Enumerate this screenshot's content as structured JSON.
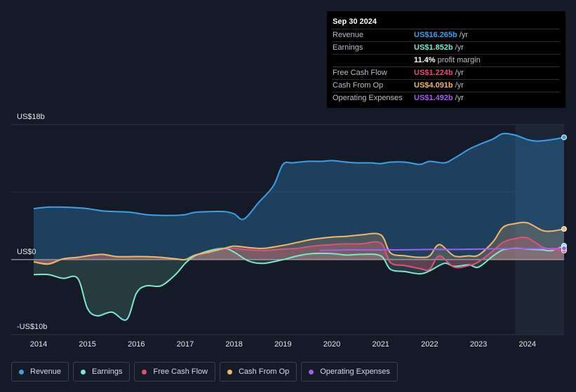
{
  "tooltip": {
    "date": "Sep 30 2024",
    "rows": [
      {
        "label": "Revenue",
        "value": "US$16.265b",
        "unit": "/yr",
        "color": "#3ba0e8"
      },
      {
        "label": "Earnings",
        "value": "US$1.852b",
        "unit": "/yr",
        "color": "#7de8d0"
      },
      {
        "label": "",
        "value": "11.4%",
        "unit": "profit margin",
        "color": "#ffffff"
      },
      {
        "label": "Free Cash Flow",
        "value": "US$1.224b",
        "unit": "/yr",
        "color": "#e0517a"
      },
      {
        "label": "Cash From Op",
        "value": "US$4.091b",
        "unit": "/yr",
        "color": "#f0b86a"
      },
      {
        "label": "Operating Expenses",
        "value": "US$1.492b",
        "unit": "/yr",
        "color": "#a45cf0"
      }
    ]
  },
  "legend": [
    {
      "label": "Revenue",
      "color": "#3ba0e8"
    },
    {
      "label": "Earnings",
      "color": "#7de8d0"
    },
    {
      "label": "Free Cash Flow",
      "color": "#e0517a"
    },
    {
      "label": "Cash From Op",
      "color": "#f0b86a"
    },
    {
      "label": "Operating Expenses",
      "color": "#a45cf0"
    }
  ],
  "chart_data": {
    "type": "area",
    "y_labels": {
      "top": "US$18b",
      "zero": "US$0",
      "bottom": "-US$10b"
    },
    "ylim": [
      -10,
      18
    ],
    "xlim": [
      2013.9,
      2024.75
    ],
    "x_ticks": [
      "2014",
      "2015",
      "2016",
      "2017",
      "2018",
      "2019",
      "2020",
      "2021",
      "2022",
      "2023",
      "2024"
    ],
    "highlight_from": 2023.75,
    "series": [
      {
        "name": "Revenue",
        "color": "#3ba0e8",
        "fill": true,
        "x": [
          2013.9,
          2014.2,
          2014.5,
          2014.8,
          2015.0,
          2015.3,
          2015.6,
          2015.9,
          2016.2,
          2016.5,
          2016.8,
          2017.0,
          2017.2,
          2017.5,
          2017.8,
          2018.0,
          2018.2,
          2018.5,
          2018.8,
          2019.0,
          2019.2,
          2019.5,
          2019.8,
          2020.0,
          2020.3,
          2020.5,
          2020.8,
          2021.0,
          2021.2,
          2021.5,
          2021.8,
          2022.0,
          2022.3,
          2022.5,
          2022.8,
          2023.0,
          2023.3,
          2023.5,
          2023.75,
          2024.0,
          2024.2,
          2024.5,
          2024.75
        ],
        "y": [
          6.8,
          7.0,
          7.0,
          6.9,
          6.8,
          6.5,
          6.4,
          6.3,
          6.0,
          5.9,
          5.9,
          6.0,
          6.3,
          6.4,
          6.4,
          6.1,
          5.4,
          7.6,
          9.8,
          12.7,
          12.9,
          13.1,
          13.1,
          13.2,
          13.0,
          12.9,
          12.9,
          12.8,
          13.0,
          13.0,
          12.7,
          13.1,
          12.9,
          13.5,
          14.7,
          15.3,
          16.1,
          16.8,
          16.6,
          16.0,
          15.8,
          16.0,
          16.3
        ]
      },
      {
        "name": "Earnings",
        "color": "#7de8d0",
        "fill": true,
        "x": [
          2013.9,
          2014.2,
          2014.5,
          2014.8,
          2015.0,
          2015.2,
          2015.5,
          2015.8,
          2016.0,
          2016.2,
          2016.5,
          2016.8,
          2017.0,
          2017.2,
          2017.5,
          2017.8,
          2018.0,
          2018.3,
          2018.6,
          2019.0,
          2019.3,
          2019.6,
          2020.0,
          2020.3,
          2020.6,
          2021.0,
          2021.2,
          2021.5,
          2021.8,
          2022.0,
          2022.3,
          2022.5,
          2022.8,
          2023.0,
          2023.3,
          2023.5,
          2023.75,
          2024.0,
          2024.3,
          2024.5,
          2024.75
        ],
        "y": [
          -2.0,
          -2.0,
          -2.5,
          -2.5,
          -6.5,
          -7.5,
          -7.0,
          -8.0,
          -4.5,
          -3.5,
          -3.5,
          -2.0,
          -0.5,
          0.5,
          1.2,
          1.5,
          1.0,
          -0.2,
          -0.5,
          0.0,
          0.5,
          0.8,
          0.8,
          0.6,
          0.7,
          0.5,
          -1.3,
          -1.6,
          -1.9,
          -1.5,
          -0.5,
          -0.9,
          -0.7,
          -1.0,
          0.5,
          1.3,
          1.5,
          1.4,
          1.3,
          1.2,
          1.85
        ]
      },
      {
        "name": "Free Cash Flow",
        "color": "#e0517a",
        "fill": true,
        "x": [
          2013.9,
          2014.2,
          2014.5,
          2014.8,
          2015.0,
          2015.3,
          2015.6,
          2015.9,
          2016.2,
          2016.5,
          2016.8,
          2017.0,
          2017.2,
          2017.5,
          2017.8,
          2018.0,
          2018.3,
          2018.6,
          2019.0,
          2019.3,
          2019.6,
          2020.0,
          2020.3,
          2020.6,
          2021.0,
          2021.2,
          2021.5,
          2021.8,
          2022.0,
          2022.2,
          2022.5,
          2022.8,
          2023.0,
          2023.3,
          2023.5,
          2023.75,
          2024.0,
          2024.3,
          2024.5,
          2024.75
        ],
        "y": [
          -0.3,
          -0.5,
          0.1,
          0.3,
          0.5,
          0.7,
          0.4,
          0.4,
          0.4,
          0.3,
          0.1,
          0.0,
          0.6,
          1.0,
          1.5,
          1.5,
          1.3,
          1.2,
          1.4,
          1.5,
          1.8,
          2.0,
          2.1,
          2.1,
          2.2,
          -0.4,
          -0.8,
          -1.2,
          -1.3,
          0.5,
          -1.0,
          -0.8,
          -0.3,
          1.2,
          2.3,
          2.8,
          2.9,
          1.7,
          1.4,
          1.2
        ]
      },
      {
        "name": "Cash From Op",
        "color": "#f0b86a",
        "fill": true,
        "x": [
          2013.9,
          2014.2,
          2014.5,
          2014.8,
          2015.0,
          2015.3,
          2015.6,
          2015.9,
          2016.2,
          2016.5,
          2016.8,
          2017.0,
          2017.2,
          2017.5,
          2017.8,
          2018.0,
          2018.3,
          2018.6,
          2019.0,
          2019.3,
          2019.6,
          2020.0,
          2020.3,
          2020.6,
          2021.0,
          2021.2,
          2021.5,
          2021.8,
          2022.0,
          2022.2,
          2022.5,
          2022.8,
          2023.0,
          2023.3,
          2023.5,
          2023.75,
          2024.0,
          2024.3,
          2024.5,
          2024.75
        ],
        "y": [
          -0.3,
          -0.6,
          0.1,
          0.3,
          0.5,
          0.7,
          0.4,
          0.4,
          0.4,
          0.3,
          0.1,
          0.0,
          0.6,
          1.0,
          1.5,
          1.8,
          1.6,
          1.5,
          1.9,
          2.3,
          2.7,
          3.0,
          3.1,
          3.3,
          3.3,
          0.9,
          0.5,
          0.3,
          0.5,
          2.0,
          0.5,
          0.5,
          0.6,
          2.4,
          4.3,
          4.8,
          4.9,
          3.9,
          3.8,
          4.09
        ]
      },
      {
        "name": "Operating Expenses",
        "color": "#a45cf0",
        "fill": false,
        "x": [
          2019.75,
          2020.0,
          2020.5,
          2021.0,
          2021.5,
          2022.0,
          2022.5,
          2023.0,
          2023.5,
          2023.75,
          2024.0,
          2024.5,
          2024.75
        ],
        "y": [
          1.2,
          1.25,
          1.3,
          1.3,
          1.3,
          1.35,
          1.35,
          1.4,
          1.45,
          1.45,
          1.45,
          1.48,
          1.49
        ]
      }
    ]
  }
}
